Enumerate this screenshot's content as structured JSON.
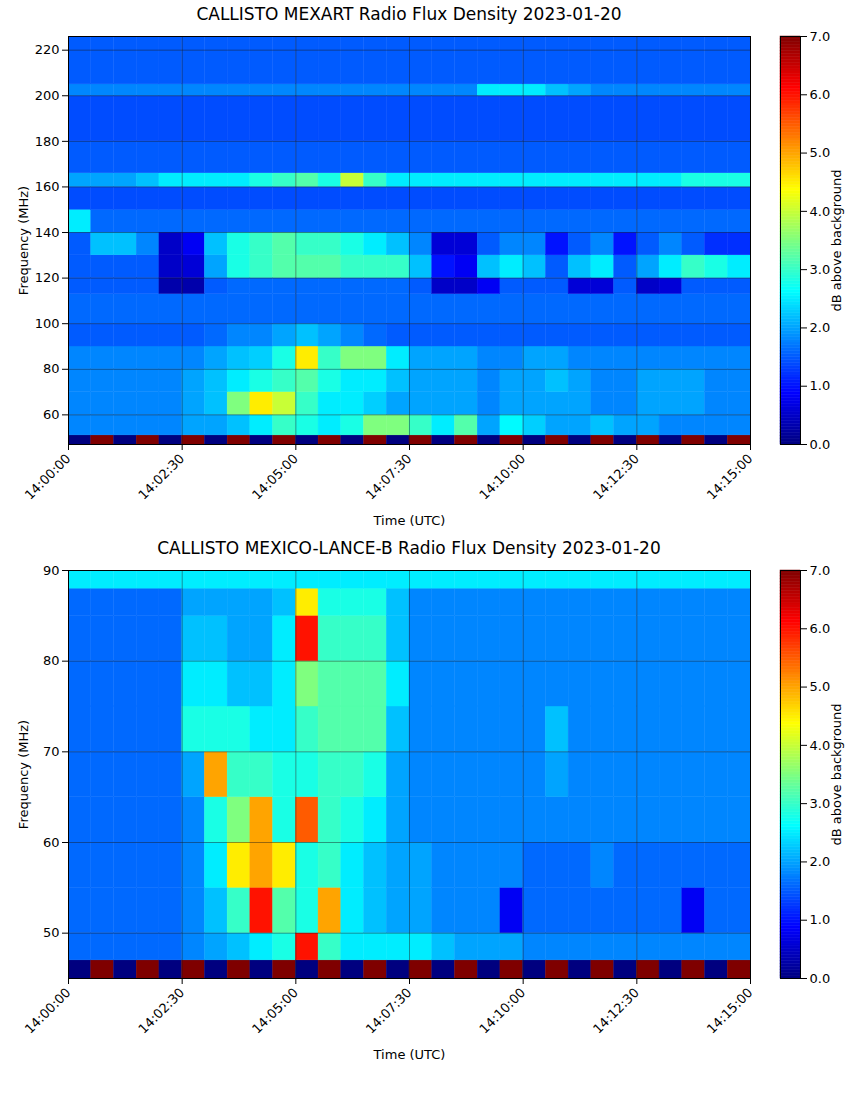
{
  "chart_data": [
    {
      "type": "heatmap",
      "title": "CALLISTO MEXART Radio Flux Density 2023-01-20",
      "x_label": "Time (UTC)",
      "y_label": "Frequency (MHz)",
      "xlim": [
        "14:00:00",
        "14:15:00"
      ],
      "xticks": [
        "14:00:00",
        "14:02:30",
        "14:05:00",
        "14:07:30",
        "14:10:00",
        "14:12:30",
        "14:15:00"
      ],
      "ylim": [
        47,
        226
      ],
      "yticks": [
        60,
        80,
        100,
        120,
        140,
        160,
        180,
        200,
        220
      ],
      "grid": true,
      "x_edges": [
        "14:00:00",
        "14:00:30",
        "14:01:00",
        "14:01:30",
        "14:02:00",
        "14:02:30",
        "14:03:00",
        "14:03:30",
        "14:04:00",
        "14:04:30",
        "14:05:00",
        "14:05:30",
        "14:06:00",
        "14:06:30",
        "14:07:00",
        "14:07:30",
        "14:08:00",
        "14:08:30",
        "14:09:00",
        "14:09:30",
        "14:10:00",
        "14:10:30",
        "14:11:00",
        "14:11:30",
        "14:12:00",
        "14:12:30",
        "14:13:00",
        "14:13:30",
        "14:14:00",
        "14:14:30",
        "14:15:00"
      ],
      "y_edges": [
        47,
        51,
        60,
        70,
        80,
        90,
        100,
        113,
        120,
        130,
        140,
        150,
        160,
        166,
        180,
        200,
        205,
        226
      ],
      "cells": [
        [
          0,
          7,
          0,
          7,
          0,
          7,
          0,
          7,
          0,
          7,
          0,
          7,
          0,
          7,
          0,
          7,
          0,
          7,
          0,
          7,
          0,
          7,
          0,
          7,
          0,
          7,
          0,
          7,
          0,
          7
        ],
        [
          1.8,
          1.8,
          1.8,
          1.8,
          1.8,
          2,
          2,
          2.2,
          2.5,
          3,
          2.8,
          2.5,
          2.8,
          3.5,
          3.5,
          3,
          2.5,
          3.2,
          2,
          2.6,
          2.3,
          2,
          2,
          2.2,
          2,
          2,
          1.8,
          1.8,
          1.8,
          1.8
        ],
        [
          1.8,
          1.8,
          1.8,
          1.8,
          1.8,
          2,
          2.2,
          3.5,
          4.5,
          4,
          3,
          2.5,
          2.5,
          2.3,
          2,
          2,
          2,
          2,
          1.8,
          2,
          2,
          2,
          2,
          1.8,
          1.8,
          2,
          2,
          2,
          1.8,
          1.8
        ],
        [
          1.8,
          1.8,
          1.8,
          1.8,
          1.8,
          2,
          2.2,
          2.5,
          2.8,
          3,
          3.2,
          2.8,
          2.5,
          2.5,
          2.2,
          2,
          2,
          2,
          1.8,
          2,
          2,
          2.2,
          2,
          1.8,
          1.8,
          2,
          2,
          2,
          1.8,
          1.8
        ],
        [
          1.8,
          1.8,
          1.8,
          1.8,
          1.8,
          1.8,
          2,
          2.2,
          2.3,
          2.8,
          4.5,
          3,
          3.5,
          3.5,
          2.5,
          2,
          2,
          2,
          1.8,
          1.8,
          2,
          2,
          1.8,
          1.8,
          1.8,
          1.8,
          1.8,
          1.8,
          1.8,
          1.8
        ],
        [
          1.5,
          1.5,
          1.5,
          1.5,
          1.5,
          1.5,
          1.6,
          1.8,
          1.8,
          2,
          2.2,
          2,
          1.8,
          1.6,
          1.5,
          1.5,
          1.5,
          1.5,
          1.5,
          1.5,
          1.5,
          1.5,
          1.5,
          1.5,
          1.5,
          1.5,
          1.5,
          1.5,
          1.5,
          1.5
        ],
        [
          1.6,
          1.6,
          1.6,
          1.6,
          1.6,
          1.6,
          1.6,
          1.6,
          1.6,
          1.6,
          1.6,
          1.6,
          1.6,
          1.6,
          1.6,
          1.6,
          1.6,
          1.6,
          1.6,
          1.6,
          1.6,
          1.6,
          1.6,
          1.6,
          1.6,
          1.6,
          1.6,
          1.6,
          1.6,
          1.6
        ],
        [
          1.5,
          1.5,
          1.5,
          1.5,
          0.3,
          0.3,
          1.5,
          1.6,
          1.6,
          1.6,
          1.6,
          1.6,
          1.6,
          1.6,
          1.6,
          1.5,
          0.5,
          0.5,
          0.8,
          1.5,
          1.5,
          1.5,
          0.6,
          0.6,
          1.5,
          0.5,
          0.6,
          1.5,
          1.5,
          1.5
        ],
        [
          1.5,
          1.5,
          1.5,
          1.5,
          0.5,
          0.6,
          2,
          2.8,
          3,
          3.2,
          3.2,
          3.2,
          3,
          3,
          3,
          2.2,
          1,
          0.8,
          2.2,
          2.5,
          2.2,
          1.5,
          2.2,
          2.5,
          1.5,
          2,
          2.5,
          3,
          2.8,
          2.5
        ],
        [
          1.5,
          2.2,
          2.2,
          1.8,
          0.5,
          0.8,
          2.2,
          2.8,
          3,
          3.2,
          3,
          3,
          2.8,
          2.5,
          2.2,
          1.8,
          0.6,
          0.6,
          1.5,
          1.8,
          1.8,
          1,
          1.5,
          1.8,
          1,
          1.5,
          1.8,
          1.5,
          1.2,
          1.2
        ],
        [
          2.5,
          1.6,
          1.6,
          1.6,
          1.6,
          1.6,
          1.6,
          1.6,
          1.6,
          1.6,
          1.6,
          1.6,
          1.6,
          1.6,
          1.6,
          1.6,
          1.6,
          1.6,
          1.6,
          1.6,
          1.6,
          1.6,
          1.6,
          1.6,
          1.6,
          1.6,
          1.6,
          1.6,
          1.6,
          1.6
        ],
        [
          1.4,
          1.4,
          1.4,
          1.4,
          1.4,
          1.4,
          1.4,
          1.4,
          1.4,
          1.4,
          1.4,
          1.4,
          1.4,
          1.4,
          1.4,
          1.4,
          1.4,
          1.4,
          1.4,
          1.4,
          1.4,
          1.4,
          1.4,
          1.4,
          1.4,
          1.4,
          1.4,
          1.4,
          1.4,
          1.4
        ],
        [
          2,
          2,
          2,
          2.2,
          2.5,
          2.5,
          2.5,
          2.5,
          2.8,
          3,
          3.2,
          2.8,
          4,
          3,
          2.5,
          2.5,
          2.5,
          2.5,
          2.5,
          2.5,
          2.5,
          2.5,
          2.5,
          2.5,
          2.5,
          2.5,
          2.5,
          2.8,
          2.8,
          2.8
        ],
        [
          1.5,
          1.5,
          1.5,
          1.5,
          1.5,
          1.5,
          1.5,
          1.5,
          1.5,
          1.5,
          1.5,
          1.5,
          1.5,
          1.5,
          1.5,
          1.5,
          1.5,
          1.5,
          1.5,
          1.5,
          1.5,
          1.5,
          1.5,
          1.5,
          1.5,
          1.5,
          1.5,
          1.5,
          1.5,
          1.5
        ],
        [
          1.4,
          1.4,
          1.4,
          1.4,
          1.4,
          1.4,
          1.4,
          1.4,
          1.4,
          1.4,
          1.4,
          1.4,
          1.4,
          1.4,
          1.4,
          1.4,
          1.4,
          1.4,
          1.4,
          1.4,
          1.4,
          1.4,
          1.4,
          1.4,
          1.4,
          1.4,
          1.4,
          1.4,
          1.4,
          1.4
        ],
        [
          1.8,
          1.8,
          1.8,
          1.8,
          1.8,
          1.8,
          1.8,
          1.8,
          1.8,
          1.8,
          1.8,
          1.8,
          1.8,
          1.8,
          1.8,
          1.8,
          1.8,
          1.8,
          2.5,
          2.5,
          2.5,
          2.2,
          2,
          1.8,
          1.8,
          1.8,
          1.8,
          1.8,
          1.8,
          1.8
        ],
        [
          1.5,
          1.5,
          1.5,
          1.5,
          1.5,
          1.5,
          1.5,
          1.5,
          1.5,
          1.5,
          1.5,
          1.5,
          1.5,
          1.5,
          1.5,
          1.5,
          1.5,
          1.5,
          1.5,
          1.5,
          1.5,
          1.5,
          1.5,
          1.5,
          1.5,
          1.5,
          1.5,
          1.5,
          1.5,
          1.5
        ]
      ],
      "colorbar": {
        "label": "dB above background",
        "range": [
          0,
          7
        ],
        "ticks": [
          0,
          1,
          2,
          3,
          4,
          5,
          6,
          7
        ]
      }
    },
    {
      "type": "heatmap",
      "title": "CALLISTO MEXICO-LANCE-B Radio Flux Density 2023-01-20",
      "x_label": "Time (UTC)",
      "y_label": "Frequency (MHz)",
      "xlim": [
        "14:00:00",
        "14:15:00"
      ],
      "xticks": [
        "14:00:00",
        "14:02:30",
        "14:05:00",
        "14:07:30",
        "14:10:00",
        "14:12:30",
        "14:15:00"
      ],
      "ylim": [
        45,
        90
      ],
      "yticks": [
        50,
        60,
        70,
        80,
        90
      ],
      "grid": true,
      "x_edges": [
        "14:00:00",
        "14:00:30",
        "14:01:00",
        "14:01:30",
        "14:02:00",
        "14:02:30",
        "14:03:00",
        "14:03:30",
        "14:04:00",
        "14:04:30",
        "14:05:00",
        "14:05:30",
        "14:06:00",
        "14:06:30",
        "14:07:00",
        "14:07:30",
        "14:08:00",
        "14:08:30",
        "14:09:00",
        "14:09:30",
        "14:10:00",
        "14:10:30",
        "14:11:00",
        "14:11:30",
        "14:12:00",
        "14:12:30",
        "14:13:00",
        "14:13:30",
        "14:14:00",
        "14:14:30",
        "14:15:00"
      ],
      "y_edges": [
        45,
        47,
        50,
        55,
        60,
        65,
        70,
        75,
        80,
        85,
        88,
        90
      ],
      "cells": [
        [
          0,
          7,
          0,
          7,
          0,
          7,
          0,
          7,
          0,
          7,
          0,
          7,
          0,
          7,
          0,
          7,
          0,
          7,
          0,
          7,
          0,
          7,
          0,
          7,
          0,
          7,
          0,
          7,
          0,
          7
        ],
        [
          1.6,
          1.6,
          1.6,
          1.6,
          1.6,
          1.8,
          2,
          2.2,
          2.5,
          2.8,
          6,
          3,
          2.5,
          2.5,
          2.5,
          2.5,
          2.2,
          2,
          2,
          2,
          1.8,
          1.8,
          1.8,
          1.8,
          1.8,
          1.8,
          1.8,
          1.8,
          1.8,
          1.8
        ],
        [
          1.6,
          1.6,
          1.6,
          1.6,
          1.6,
          1.8,
          2.2,
          3,
          6,
          3.2,
          2.8,
          5,
          2.5,
          2.2,
          2,
          2,
          1.8,
          1.8,
          1.8,
          0.8,
          1.6,
          1.6,
          1.6,
          1.6,
          1.6,
          1.6,
          1.6,
          0.8,
          1.6,
          1.6
        ],
        [
          1.6,
          1.6,
          1.6,
          1.6,
          1.6,
          1.8,
          2.5,
          4.5,
          5,
          4.5,
          2.8,
          3,
          2.5,
          2.2,
          2,
          2,
          1.8,
          1.8,
          1.8,
          1.8,
          1.6,
          1.6,
          1.6,
          1.8,
          1.6,
          1.6,
          1.6,
          1.6,
          1.6,
          1.6
        ],
        [
          1.6,
          1.6,
          1.6,
          1.6,
          1.6,
          1.8,
          2.8,
          3.5,
          5,
          2.8,
          5.5,
          3,
          2.8,
          2.5,
          2,
          1.8,
          1.8,
          1.8,
          1.8,
          1.8,
          1.8,
          1.8,
          1.8,
          1.8,
          1.8,
          1.8,
          1.8,
          1.8,
          1.8,
          1.8
        ],
        [
          1.6,
          1.6,
          1.6,
          1.6,
          1.6,
          2,
          5,
          3,
          3,
          2.8,
          2.8,
          3,
          3,
          2.8,
          2,
          1.8,
          1.8,
          1.8,
          1.8,
          1.8,
          1.8,
          2,
          1.8,
          1.8,
          1.8,
          1.8,
          1.8,
          1.8,
          1.8,
          1.8
        ],
        [
          1.6,
          1.6,
          1.6,
          1.6,
          1.6,
          2.8,
          2.8,
          2.8,
          2.5,
          2.5,
          3,
          3.2,
          3.2,
          3.2,
          2.2,
          1.8,
          1.8,
          1.8,
          1.8,
          1.8,
          1.8,
          2.2,
          1.8,
          1.8,
          1.8,
          1.8,
          1.8,
          1.8,
          1.8,
          1.8
        ],
        [
          1.6,
          1.6,
          1.6,
          1.6,
          1.6,
          2.5,
          2.5,
          2.2,
          2.2,
          2.5,
          3.5,
          3.2,
          3.2,
          3.2,
          2.5,
          1.8,
          1.8,
          1.8,
          1.8,
          1.8,
          1.8,
          1.8,
          1.8,
          1.8,
          1.8,
          1.8,
          1.8,
          1.8,
          1.8,
          1.8
        ],
        [
          1.6,
          1.6,
          1.6,
          1.6,
          1.6,
          2.2,
          2.2,
          2,
          2,
          2.5,
          6,
          3,
          3,
          3,
          2.2,
          1.8,
          1.8,
          1.8,
          1.8,
          1.8,
          1.8,
          1.8,
          1.8,
          1.8,
          1.8,
          1.8,
          1.8,
          1.8,
          1.8,
          1.8
        ],
        [
          1.6,
          1.6,
          1.6,
          1.6,
          1.6,
          2,
          2,
          2,
          2,
          2.2,
          4.5,
          2.8,
          2.8,
          2.8,
          2.2,
          1.8,
          1.8,
          1.8,
          1.8,
          1.8,
          1.8,
          1.8,
          1.8,
          1.8,
          1.8,
          1.8,
          1.8,
          1.8,
          1.8,
          1.8
        ],
        [
          2.5,
          2.5,
          2.5,
          2.5,
          2.5,
          2.5,
          2.5,
          2.5,
          2.5,
          2.5,
          2.5,
          2.5,
          2.5,
          2.5,
          2.5,
          2.5,
          2.5,
          2.5,
          2.5,
          2.5,
          2.5,
          2.5,
          2.5,
          2.5,
          2.5,
          2.5,
          2.5,
          2.5,
          2.5,
          2.5
        ]
      ],
      "colorbar": {
        "label": "dB above background",
        "range": [
          0,
          7
        ],
        "ticks": [
          0,
          1,
          2,
          3,
          4,
          5,
          6,
          7
        ]
      }
    }
  ]
}
